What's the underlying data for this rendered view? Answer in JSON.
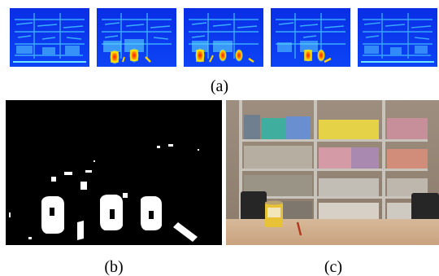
{
  "figure": {
    "panel_a": {
      "label": "(a)",
      "thumbnails": [
        "heatmap-frame-1",
        "heatmap-frame-2",
        "heatmap-frame-3",
        "heatmap-frame-4",
        "heatmap-frame-5"
      ]
    },
    "panel_b": {
      "label": "(b)"
    },
    "panel_c": {
      "label": "(c)"
    }
  },
  "colors": {
    "heat_bg": "#0a3cf0",
    "heat_lines": "#35b6ff",
    "hot": "#ff2a00",
    "warm": "#ffe600",
    "mask_bg": "#000000",
    "mask_fg": "#ffffff"
  }
}
